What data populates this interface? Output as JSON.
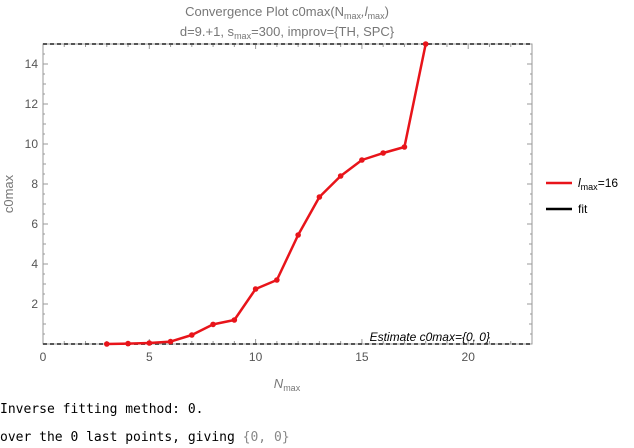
{
  "chart_data": {
    "type": "line",
    "title": "Convergence Plot c0max(N",
    "title_sub1": "max",
    "title_mid": ",l",
    "title_sub2": "max",
    "title_end": ")",
    "subtitle_a": "d=9.+1, s",
    "subtitle_sub": "max",
    "subtitle_b": "=300, improv={TH, SPC}",
    "xlabel": "N",
    "xlabel_sub": "max",
    "ylabel": "c0max",
    "xlim": [
      0,
      23
    ],
    "ylim": [
      0,
      15
    ],
    "x_ticks": [
      0,
      5,
      10,
      15,
      20
    ],
    "y_ticks": [
      2,
      4,
      6,
      8,
      10,
      12,
      14
    ],
    "series": [
      {
        "name": "l",
        "name_sub": "max",
        "name_suffix": "=16",
        "color": "#e8141a",
        "x": [
          3,
          4,
          5,
          6,
          7,
          8,
          9,
          10,
          11,
          12,
          13,
          14,
          15,
          16,
          17,
          18
        ],
        "y": [
          0.0,
          0.02,
          0.05,
          0.12,
          0.45,
          0.98,
          1.2,
          2.75,
          3.2,
          5.45,
          7.35,
          8.4,
          9.2,
          9.55,
          9.85,
          15.0
        ]
      },
      {
        "name": "fit",
        "color": "#000000",
        "x": [],
        "y": []
      }
    ],
    "reference_lines": [
      0,
      15
    ],
    "annotation": "Estimate c0max={0, 0}",
    "legend_position": "right"
  },
  "console": {
    "line1": "Inverse fitting method: 0.",
    "line2_prefix": "over the 0 last points, giving ",
    "line2_value": "{0, 0}"
  }
}
